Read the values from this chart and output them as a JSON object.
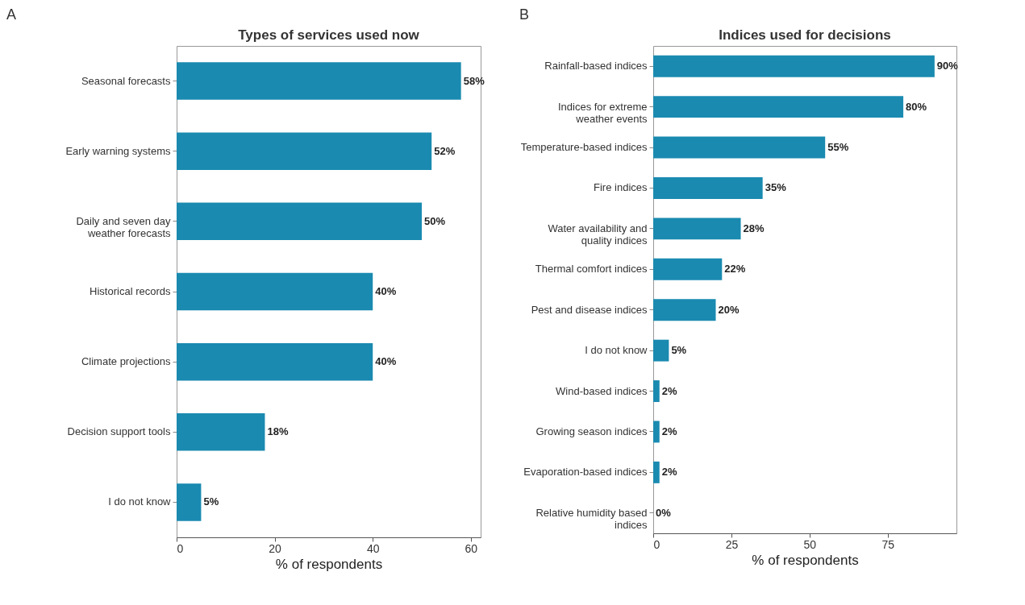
{
  "chart_data": [
    {
      "type": "bar",
      "orientation": "horizontal",
      "title": "Types of services used now",
      "xlabel": "% of respondents",
      "annotations": [
        "A"
      ],
      "categories": [
        "Seasonal forecasts",
        "Early warning systems",
        "Daily and seven day\nweather forecasts",
        "Historical records",
        "Climate projections",
        "Decision support tools",
        "I do not know"
      ],
      "values": [
        58,
        52,
        50,
        40,
        40,
        18,
        5
      ],
      "value_labels": [
        "58%",
        "52%",
        "50%",
        "40%",
        "40%",
        "18%",
        "5%"
      ],
      "color": "#1a8ab0",
      "xlim": [
        0,
        62
      ],
      "xticks": [
        0,
        20,
        40,
        60
      ],
      "grid": false
    },
    {
      "type": "bar",
      "orientation": "horizontal",
      "title": "Indices used for decisions",
      "xlabel": "% of respondents",
      "annotations": [
        "B"
      ],
      "categories": [
        "Rainfall-based indices",
        "Indices for extreme\nweather events",
        "Temperature-based indices",
        "Fire indices",
        "Water availability and\nquality indices",
        "Thermal comfort indices",
        "Pest and disease indices",
        "I do not know",
        "Wind-based indices",
        "Growing season indices",
        "Evaporation-based indices",
        "Relative humidity based\nindices"
      ],
      "values": [
        90,
        80,
        55,
        35,
        28,
        22,
        20,
        5,
        2,
        2,
        2,
        0
      ],
      "value_labels": [
        "90%",
        "80%",
        "55%",
        "35%",
        "28%",
        "22%",
        "20%",
        "5%",
        "2%",
        "2%",
        "2%",
        "0%"
      ],
      "color": "#1a8ab0",
      "xlim": [
        0,
        97
      ],
      "xticks": [
        0,
        25,
        50,
        75
      ],
      "grid": false
    }
  ]
}
